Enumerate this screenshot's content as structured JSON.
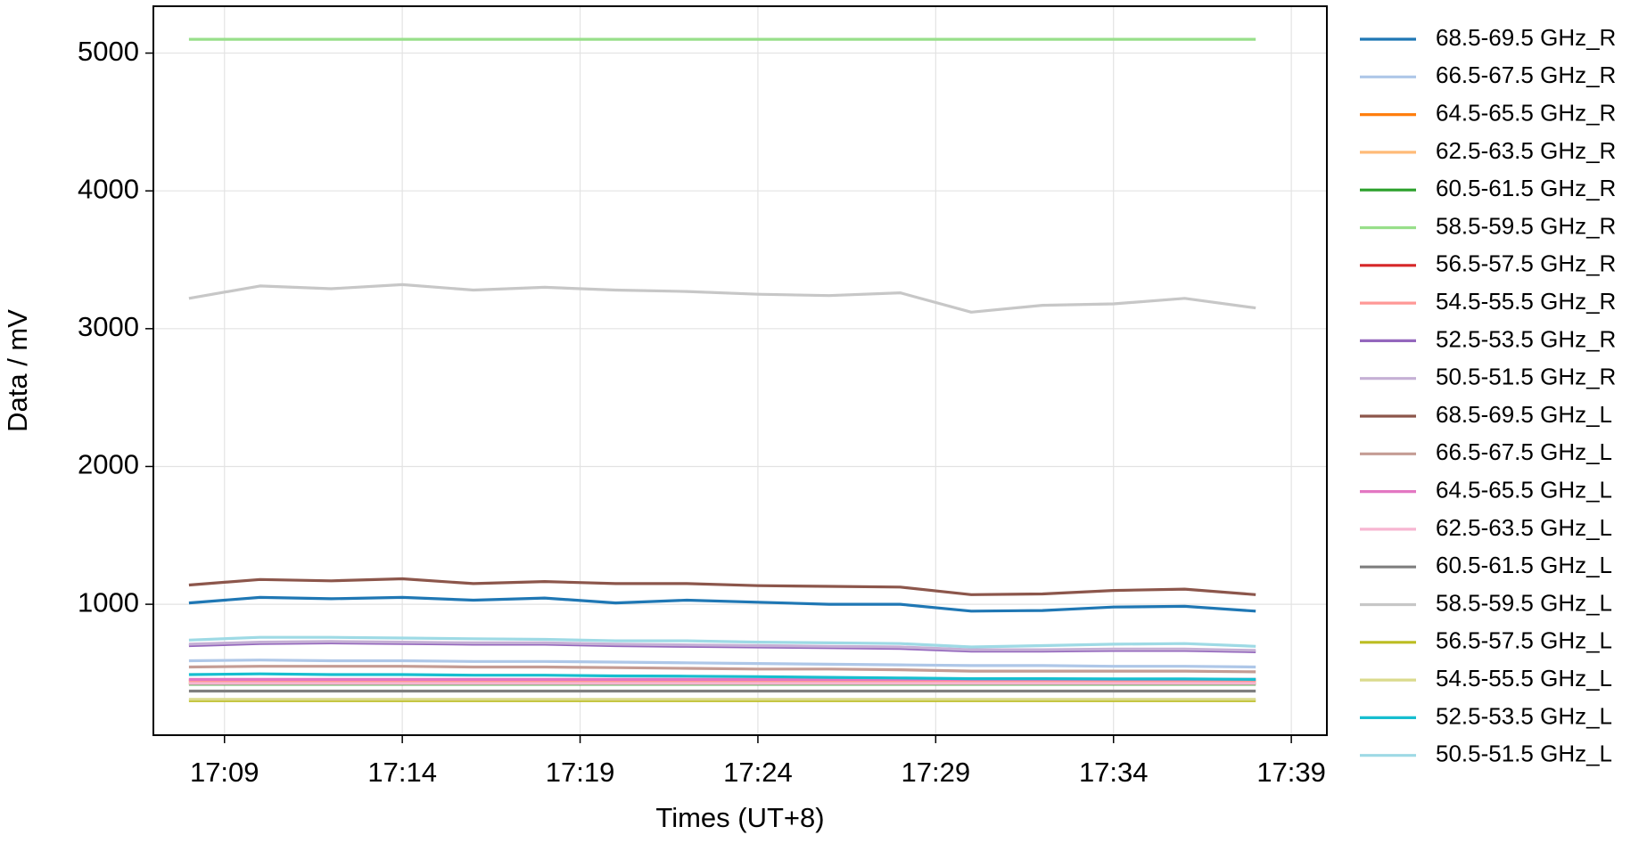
{
  "chart_data": {
    "type": "line",
    "x_label": "Times (UT+8)",
    "y_label": "Data / mV",
    "x": [
      "17:08",
      "17:10",
      "17:12",
      "17:14",
      "17:16",
      "17:18",
      "17:20",
      "17:22",
      "17:24",
      "17:26",
      "17:28",
      "17:30",
      "17:32",
      "17:34",
      "17:36",
      "17:38"
    ],
    "xlim": [
      "17:07",
      "17:40"
    ],
    "xticks": [
      "17:09",
      "17:14",
      "17:19",
      "17:24",
      "17:29",
      "17:34",
      "17:39"
    ],
    "ylim": [
      50,
      5340
    ],
    "yticks": [
      1000,
      2000,
      3000,
      4000,
      5000
    ],
    "grid": true,
    "legend": "outside right",
    "series": [
      {
        "name": "68.5-69.5 GHz_R",
        "color": "#1f77b4",
        "values": [
          1010,
          1050,
          1040,
          1050,
          1030,
          1045,
          1010,
          1030,
          1015,
          1000,
          1000,
          950,
          955,
          980,
          985,
          950
        ]
      },
      {
        "name": "66.5-67.5 GHz_R",
        "color": "#aec7e8",
        "values": [
          590,
          595,
          590,
          590,
          585,
          585,
          580,
          575,
          570,
          565,
          560,
          555,
          555,
          550,
          550,
          545
        ]
      },
      {
        "name": "64.5-65.5 GHz_R",
        "color": "#ff7f0e",
        "values": [
          430,
          430,
          430,
          430,
          430,
          430,
          430,
          430,
          430,
          430,
          430,
          430,
          430,
          430,
          430,
          430
        ]
      },
      {
        "name": "62.5-63.5 GHz_R",
        "color": "#ffbb78",
        "values": [
          440,
          440,
          440,
          440,
          440,
          440,
          440,
          440,
          440,
          440,
          440,
          440,
          440,
          440,
          440,
          440
        ]
      },
      {
        "name": "60.5-61.5 GHz_R",
        "color": "#2ca02c",
        "values": [
          420,
          420,
          420,
          420,
          420,
          420,
          420,
          420,
          420,
          420,
          420,
          420,
          420,
          420,
          420,
          420
        ]
      },
      {
        "name": "58.5-59.5 GHz_R",
        "color": "#98df8a",
        "values": [
          5100,
          5100,
          5100,
          5100,
          5100,
          5100,
          5100,
          5100,
          5100,
          5100,
          5100,
          5100,
          5100,
          5100,
          5100,
          5100
        ]
      },
      {
        "name": "56.5-57.5 GHz_R",
        "color": "#d62728",
        "values": [
          450,
          450,
          450,
          450,
          450,
          450,
          450,
          450,
          450,
          450,
          450,
          450,
          450,
          450,
          450,
          450
        ]
      },
      {
        "name": "54.5-55.5 GHz_R",
        "color": "#ff9896",
        "values": [
          445,
          445,
          445,
          445,
          445,
          445,
          445,
          445,
          445,
          445,
          445,
          445,
          445,
          445,
          445,
          445
        ]
      },
      {
        "name": "52.5-53.5 GHz_R",
        "color": "#9467bd",
        "values": [
          700,
          715,
          720,
          715,
          710,
          710,
          700,
          695,
          690,
          685,
          680,
          660,
          660,
          665,
          665,
          655
        ]
      },
      {
        "name": "50.5-51.5 GHz_R",
        "color": "#c5b0d5",
        "values": [
          710,
          725,
          730,
          725,
          720,
          720,
          710,
          705,
          700,
          695,
          690,
          670,
          670,
          675,
          675,
          665
        ]
      },
      {
        "name": "68.5-69.5 GHz_L",
        "color": "#8c564b",
        "values": [
          1140,
          1180,
          1170,
          1185,
          1150,
          1165,
          1150,
          1150,
          1135,
          1130,
          1125,
          1070,
          1075,
          1100,
          1110,
          1070
        ]
      },
      {
        "name": "66.5-67.5 GHz_L",
        "color": "#c49c94",
        "values": [
          545,
          550,
          550,
          550,
          545,
          545,
          540,
          535,
          530,
          530,
          525,
          515,
          515,
          515,
          515,
          510
        ]
      },
      {
        "name": "64.5-65.5 GHz_L",
        "color": "#e377c2",
        "values": [
          455,
          455,
          455,
          455,
          455,
          455,
          455,
          455,
          455,
          455,
          455,
          455,
          455,
          455,
          455,
          455
        ]
      },
      {
        "name": "62.5-63.5 GHz_L",
        "color": "#f7b6d2",
        "values": [
          425,
          425,
          425,
          425,
          425,
          425,
          425,
          425,
          425,
          425,
          425,
          425,
          425,
          425,
          425,
          425
        ]
      },
      {
        "name": "60.5-61.5 GHz_L",
        "color": "#7f7f7f",
        "values": [
          370,
          370,
          370,
          370,
          370,
          370,
          370,
          370,
          370,
          370,
          370,
          370,
          370,
          370,
          370,
          370
        ]
      },
      {
        "name": "58.5-59.5 GHz_L",
        "color": "#c7c7c7",
        "values": [
          3220,
          3310,
          3290,
          3320,
          3280,
          3300,
          3280,
          3270,
          3250,
          3240,
          3260,
          3120,
          3170,
          3180,
          3220,
          3150
        ]
      },
      {
        "name": "56.5-57.5 GHz_L",
        "color": "#bcbd22",
        "values": [
          300,
          300,
          300,
          300,
          300,
          300,
          300,
          300,
          300,
          300,
          300,
          300,
          300,
          300,
          300,
          300
        ]
      },
      {
        "name": "54.5-55.5 GHz_L",
        "color": "#dbdb8d",
        "values": [
          310,
          310,
          310,
          310,
          310,
          310,
          310,
          310,
          310,
          310,
          310,
          310,
          310,
          310,
          310,
          310
        ]
      },
      {
        "name": "52.5-53.5 GHz_L",
        "color": "#17becf",
        "values": [
          490,
          495,
          490,
          490,
          485,
          485,
          480,
          478,
          475,
          470,
          465,
          460,
          460,
          458,
          458,
          455
        ]
      },
      {
        "name": "50.5-51.5 GHz_L",
        "color": "#9edae5",
        "values": [
          740,
          760,
          760,
          755,
          750,
          745,
          735,
          735,
          725,
          720,
          715,
          690,
          700,
          710,
          715,
          695
        ]
      }
    ]
  }
}
